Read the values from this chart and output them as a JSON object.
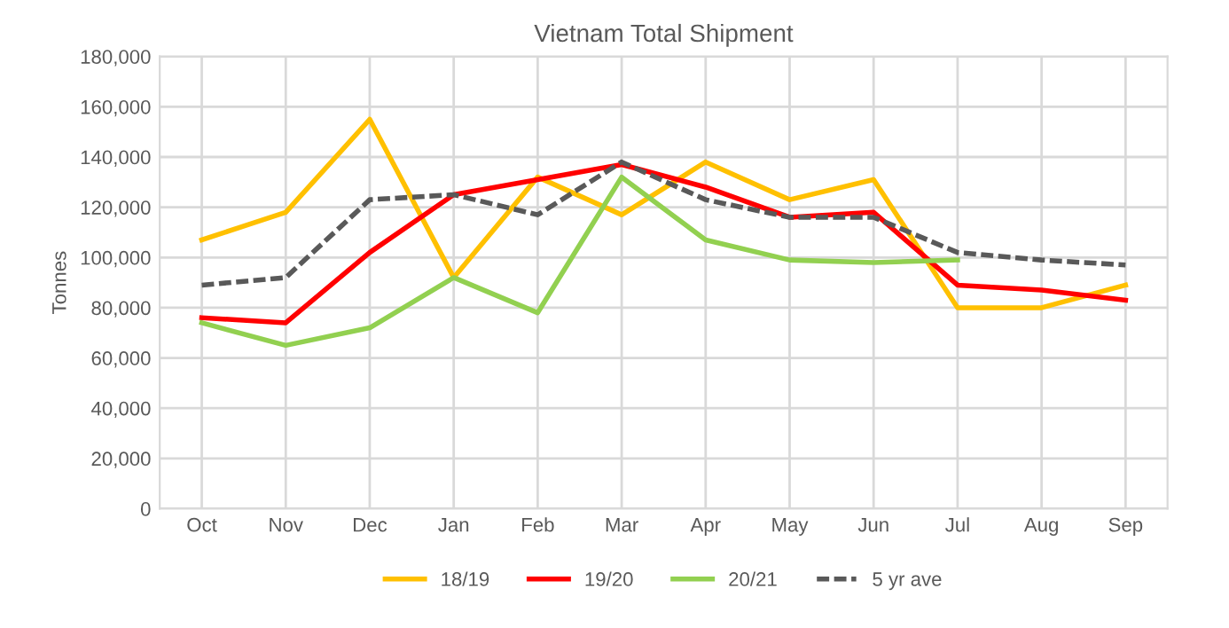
{
  "chart_data": {
    "type": "line",
    "title": "Vietnam Total Shipment",
    "ylabel": "Tonnes",
    "categories": [
      "Oct",
      "Nov",
      "Dec",
      "Jan",
      "Feb",
      "Mar",
      "Apr",
      "May",
      "Jun",
      "Jul",
      "Aug",
      "Sep"
    ],
    "series": [
      {
        "name": "18/19",
        "color": "#ffc000",
        "values": [
          107000,
          118000,
          155000,
          92000,
          132000,
          117000,
          138000,
          123000,
          131000,
          80000,
          80000,
          89000
        ]
      },
      {
        "name": "19/20",
        "color": "#ff0000",
        "values": [
          76000,
          74000,
          102000,
          125000,
          131000,
          137000,
          128000,
          116000,
          118000,
          89000,
          87000,
          83000
        ]
      },
      {
        "name": "20/21",
        "color": "#92d050",
        "values": [
          74000,
          65000,
          72000,
          92000,
          78000,
          132000,
          107000,
          99000,
          98000,
          99000,
          null,
          null
        ]
      },
      {
        "name": "5 yr ave",
        "color": "#595959",
        "line_style": "dashed",
        "values": [
          89000,
          92000,
          123000,
          125000,
          117000,
          138000,
          123000,
          116000,
          116000,
          102000,
          99000,
          97000
        ]
      }
    ],
    "ylim": [
      0,
      180000
    ],
    "yticks": [
      {
        "value": 0,
        "label": "0"
      },
      {
        "value": 20000,
        "label": "20,000"
      },
      {
        "value": 40000,
        "label": "40,000"
      },
      {
        "value": 60000,
        "label": "60,000"
      },
      {
        "value": 80000,
        "label": "80,000"
      },
      {
        "value": 100000,
        "label": "100,000"
      },
      {
        "value": 120000,
        "label": "120,000"
      },
      {
        "value": 140000,
        "label": "140,000"
      },
      {
        "value": 160000,
        "label": "160,000"
      },
      {
        "value": 180000,
        "label": "180,000"
      }
    ],
    "grid": true,
    "legend": "bottom",
    "marker": "none"
  }
}
